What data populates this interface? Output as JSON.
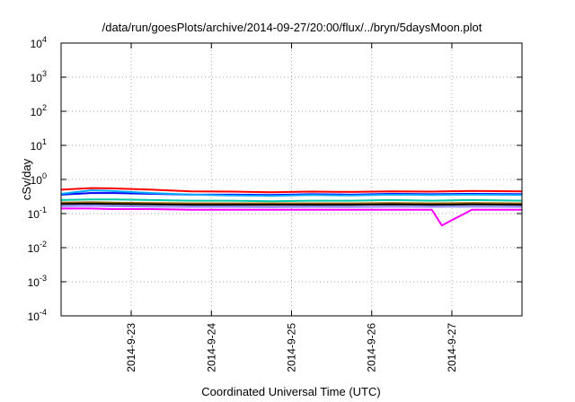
{
  "chart_data": {
    "type": "line",
    "title": "/data/run/goesPlots/archive/2014-09-27/20:00/flux/../bryn/5daysMoon.plot",
    "xlabel": "Coordinated Universal Time (UTC)",
    "ylabel": "cSv/day",
    "yscale": "log",
    "ylim": [
      0.0001,
      10000
    ],
    "xlim": [
      "2014-09-22T03:00",
      "2014-09-27T21:00"
    ],
    "grid": true,
    "y_ticks": [
      {
        "base": "10",
        "exp": "-4",
        "value": 0.0001
      },
      {
        "base": "10",
        "exp": "-3",
        "value": 0.001
      },
      {
        "base": "10",
        "exp": "-2",
        "value": 0.01
      },
      {
        "base": "10",
        "exp": "-1",
        "value": 0.1
      },
      {
        "base": "10",
        "exp": "0",
        "value": 1
      },
      {
        "base": "10",
        "exp": "1",
        "value": 10
      },
      {
        "base": "10",
        "exp": "2",
        "value": 100
      },
      {
        "base": "10",
        "exp": "3",
        "value": 1000
      },
      {
        "base": "10",
        "exp": "4",
        "value": 10000
      }
    ],
    "x_ticks": [
      {
        "label": "2014-9-23",
        "date": "2014-09-23T00:00"
      },
      {
        "label": "2014-9-24",
        "date": "2014-09-24T00:00"
      },
      {
        "label": "2014-9-25",
        "date": "2014-09-25T00:00"
      },
      {
        "label": "2014-9-26",
        "date": "2014-09-26T00:00"
      },
      {
        "label": "2014-9-27",
        "date": "2014-09-27T00:00"
      }
    ],
    "series": [
      {
        "color": "#ff0000",
        "x": [
          "2014-09-22T03:00",
          "2014-09-22T12:00",
          "2014-09-22T18:00",
          "2014-09-23T06:00",
          "2014-09-23T18:00",
          "2014-09-24T06:00",
          "2014-09-24T18:00",
          "2014-09-25T06:00",
          "2014-09-25T18:00",
          "2014-09-26T06:00",
          "2014-09-26T18:00",
          "2014-09-27T06:00",
          "2014-09-27T21:00"
        ],
        "y": [
          0.5,
          0.56,
          0.55,
          0.5,
          0.45,
          0.44,
          0.42,
          0.44,
          0.43,
          0.45,
          0.44,
          0.46,
          0.45
        ]
      },
      {
        "color": "#0000ff",
        "x": [
          "2014-09-22T03:00",
          "2014-09-22T12:00",
          "2014-09-22T18:00",
          "2014-09-23T06:00",
          "2014-09-23T18:00",
          "2014-09-24T06:00",
          "2014-09-24T18:00",
          "2014-09-25T06:00",
          "2014-09-25T18:00",
          "2014-09-26T06:00",
          "2014-09-26T18:00",
          "2014-09-27T06:00",
          "2014-09-27T21:00"
        ],
        "y": [
          0.36,
          0.4,
          0.4,
          0.38,
          0.36,
          0.36,
          0.35,
          0.37,
          0.36,
          0.38,
          0.37,
          0.38,
          0.37
        ]
      },
      {
        "color": "#00aaff",
        "x": [
          "2014-09-22T03:00",
          "2014-09-22T12:00",
          "2014-09-22T18:00",
          "2014-09-23T06:00",
          "2014-09-23T18:00",
          "2014-09-24T06:00",
          "2014-09-24T18:00",
          "2014-09-25T06:00",
          "2014-09-25T18:00",
          "2014-09-26T06:00",
          "2014-09-26T18:00",
          "2014-09-27T06:00",
          "2014-09-27T21:00"
        ],
        "y": [
          0.38,
          0.48,
          0.46,
          0.4,
          0.36,
          0.34,
          0.33,
          0.35,
          0.34,
          0.36,
          0.35,
          0.36,
          0.35
        ]
      },
      {
        "color": "#00ccaa",
        "x": [
          "2014-09-22T03:00",
          "2014-09-22T12:00",
          "2014-09-22T18:00",
          "2014-09-23T06:00",
          "2014-09-23T18:00",
          "2014-09-24T06:00",
          "2014-09-24T18:00",
          "2014-09-25T06:00",
          "2014-09-25T18:00",
          "2014-09-26T06:00",
          "2014-09-26T18:00",
          "2014-09-27T06:00",
          "2014-09-27T21:00"
        ],
        "y": [
          0.25,
          0.26,
          0.26,
          0.25,
          0.24,
          0.24,
          0.23,
          0.24,
          0.24,
          0.25,
          0.24,
          0.25,
          0.24
        ]
      },
      {
        "color": "#996600",
        "x": [
          "2014-09-22T03:00",
          "2014-09-22T12:00",
          "2014-09-22T18:00",
          "2014-09-23T06:00",
          "2014-09-23T18:00",
          "2014-09-24T06:00",
          "2014-09-24T18:00",
          "2014-09-25T06:00",
          "2014-09-25T18:00",
          "2014-09-26T06:00",
          "2014-09-26T18:00",
          "2014-09-27T06:00",
          "2014-09-27T21:00"
        ],
        "y": [
          0.21,
          0.215,
          0.21,
          0.205,
          0.2,
          0.2,
          0.2,
          0.2,
          0.2,
          0.205,
          0.2,
          0.205,
          0.2
        ]
      },
      {
        "color": "#000000",
        "x": [
          "2014-09-22T03:00",
          "2014-09-22T12:00",
          "2014-09-22T18:00",
          "2014-09-23T06:00",
          "2014-09-23T18:00",
          "2014-09-24T06:00",
          "2014-09-24T18:00",
          "2014-09-25T06:00",
          "2014-09-25T18:00",
          "2014-09-26T06:00",
          "2014-09-26T18:00",
          "2014-09-27T06:00",
          "2014-09-27T21:00"
        ],
        "y": [
          0.19,
          0.195,
          0.19,
          0.185,
          0.18,
          0.18,
          0.18,
          0.18,
          0.18,
          0.185,
          0.18,
          0.185,
          0.18
        ]
      },
      {
        "color": "#8888ff",
        "x": [
          "2014-09-22T03:00",
          "2014-09-22T12:00",
          "2014-09-22T18:00",
          "2014-09-23T06:00",
          "2014-09-23T18:00",
          "2014-09-24T06:00",
          "2014-09-24T18:00",
          "2014-09-25T06:00",
          "2014-09-25T18:00",
          "2014-09-26T06:00",
          "2014-09-26T18:00",
          "2014-09-27T06:00",
          "2014-09-27T21:00"
        ],
        "y": [
          0.165,
          0.17,
          0.165,
          0.16,
          0.158,
          0.158,
          0.156,
          0.158,
          0.157,
          0.16,
          0.158,
          0.16,
          0.158
        ]
      },
      {
        "color": "#ff00ff",
        "x": [
          "2014-09-22T03:00",
          "2014-09-22T12:00",
          "2014-09-22T18:00",
          "2014-09-23T06:00",
          "2014-09-23T18:00",
          "2014-09-24T06:00",
          "2014-09-24T18:00",
          "2014-09-25T06:00",
          "2014-09-25T18:00",
          "2014-09-26T06:00",
          "2014-09-26T18:00",
          "2014-09-26T21:00",
          "2014-09-27T06:00",
          "2014-09-27T21:00"
        ],
        "y": [
          0.14,
          0.14,
          0.135,
          0.135,
          0.13,
          0.13,
          0.13,
          0.13,
          0.13,
          0.13,
          0.13,
          0.045,
          0.13,
          0.13
        ]
      }
    ]
  }
}
